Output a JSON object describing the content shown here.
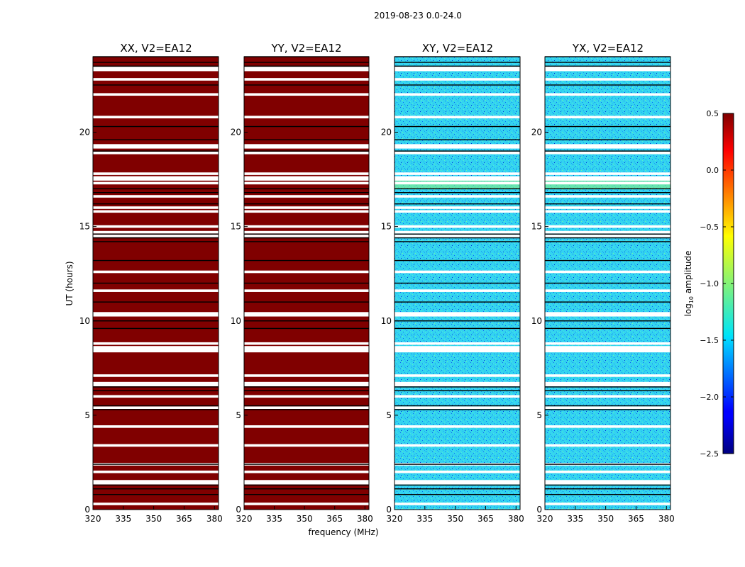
{
  "chart_data": {
    "type": "heatmap",
    "suptitle": "2019-08-23 0.0-24.0",
    "xlabel": "frequency (MHz)",
    "ylabel": "UT (hours)",
    "xlim": [
      320,
      382
    ],
    "ylim": [
      0,
      24
    ],
    "xticks": [
      320,
      335,
      350,
      365,
      380
    ],
    "yticks": [
      0,
      5,
      10,
      15,
      20
    ],
    "panels": [
      {
        "title": "XX, V2=EA12",
        "kind": "autocorrelation"
      },
      {
        "title": "YY, V2=EA12",
        "kind": "autocorrelation"
      },
      {
        "title": "XY, V2=EA12",
        "kind": "crosscorrelation"
      },
      {
        "title": "YX, V2=EA12",
        "kind": "crosscorrelation"
      }
    ],
    "flag_white_hours": [
      0.3,
      1.4,
      1.5,
      2.0,
      2.4,
      3.4,
      4.4,
      5.4,
      6.0,
      6.6,
      6.7,
      7.1,
      8.4,
      8.5,
      8.6,
      8.8,
      10.3,
      10.4,
      11.6,
      12.6,
      14.5,
      14.7,
      15.0,
      15.8,
      16.0,
      16.6,
      17.3,
      17.5,
      17.6,
      17.8,
      18.9,
      19.2,
      19.3,
      20.8,
      22.0,
      22.8,
      23.3,
      23.4
    ],
    "flag_black_hours": [
      0.8,
      1.1,
      1.3,
      2.4,
      5.3,
      5.5,
      6.3,
      6.5,
      9.6,
      10.0,
      11.0,
      12.0,
      13.2,
      14.2,
      14.4,
      14.6,
      16.2,
      16.8,
      17.0,
      19.0,
      19.6,
      20.3,
      22.5,
      23.5,
      23.7,
      24.0
    ],
    "colorbar": {
      "label": "log10 amplitude",
      "label_main": "log",
      "label_sub": "10",
      "label_rest": " amplitude",
      "range": [
        -2.5,
        0.5
      ],
      "ticks": [
        0.5,
        0.0,
        -0.5,
        -1.0,
        -1.5,
        -2.0,
        -2.5
      ],
      "tick_labels": [
        "0.5",
        "0.0",
        "−0.5",
        "−1.0",
        "−1.5",
        "−2.0",
        "−2.5"
      ],
      "colormap": "jet"
    },
    "colors": {
      "auto_fill": "#800000",
      "cross_base": "#33d4f0",
      "flag_white": "#ffffff",
      "flag_black": "#000000"
    }
  }
}
